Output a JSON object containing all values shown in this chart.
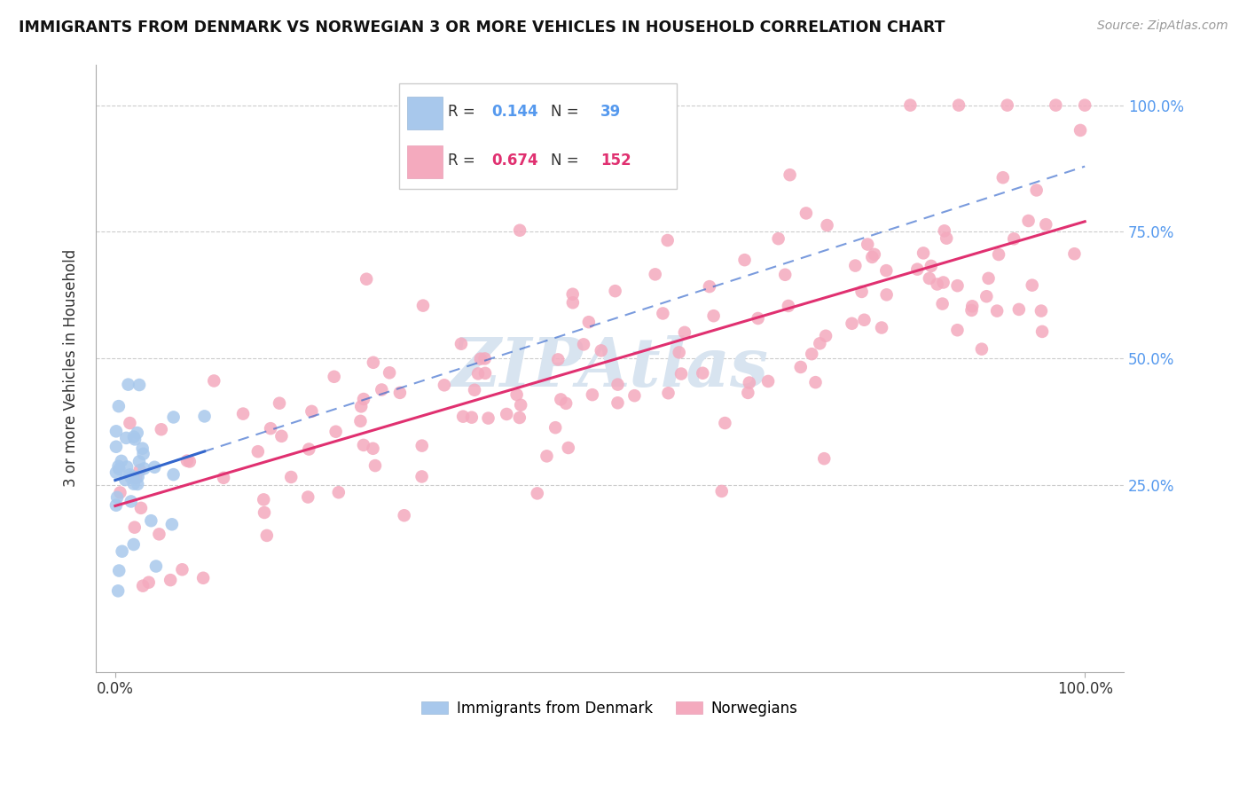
{
  "title": "IMMIGRANTS FROM DENMARK VS NORWEGIAN 3 OR MORE VEHICLES IN HOUSEHOLD CORRELATION CHART",
  "source": "Source: ZipAtlas.com",
  "ylabel": "3 or more Vehicles in Household",
  "legend1_label": "Immigrants from Denmark",
  "legend2_label": "Norwegians",
  "denmark_color": "#a8c8ec",
  "norwegian_color": "#f4aabe",
  "denmark_line_color": "#3366cc",
  "norwegian_line_color": "#e03070",
  "denmark_dash_color": "#8ab0d8",
  "watermark_color": "#d8e4f0",
  "background_color": "#ffffff",
  "grid_color": "#cccccc",
  "ytick_color": "#5599ee",
  "xtick_color": "#333333",
  "ylabel_color": "#333333",
  "title_color": "#111111",
  "source_color": "#999999",
  "xlim": [
    -0.02,
    1.04
  ],
  "ylim": [
    -0.12,
    1.08
  ],
  "yticks": [
    0.25,
    0.5,
    0.75,
    1.0
  ],
  "ytick_labels": [
    "25.0%",
    "50.0%",
    "75.0%",
    "100.0%"
  ],
  "xtick_vals": [
    0.0,
    1.0
  ],
  "xtick_labels": [
    "0.0%",
    "100.0%"
  ],
  "legend_R1": "0.144",
  "legend_N1": "39",
  "legend_R2": "0.674",
  "legend_N2": "152",
  "legend_text_color": "#333333",
  "legend_R1_color": "#5599ee",
  "legend_N1_color": "#5599ee",
  "legend_R2_color": "#e03070",
  "legend_N2_color": "#e03070"
}
